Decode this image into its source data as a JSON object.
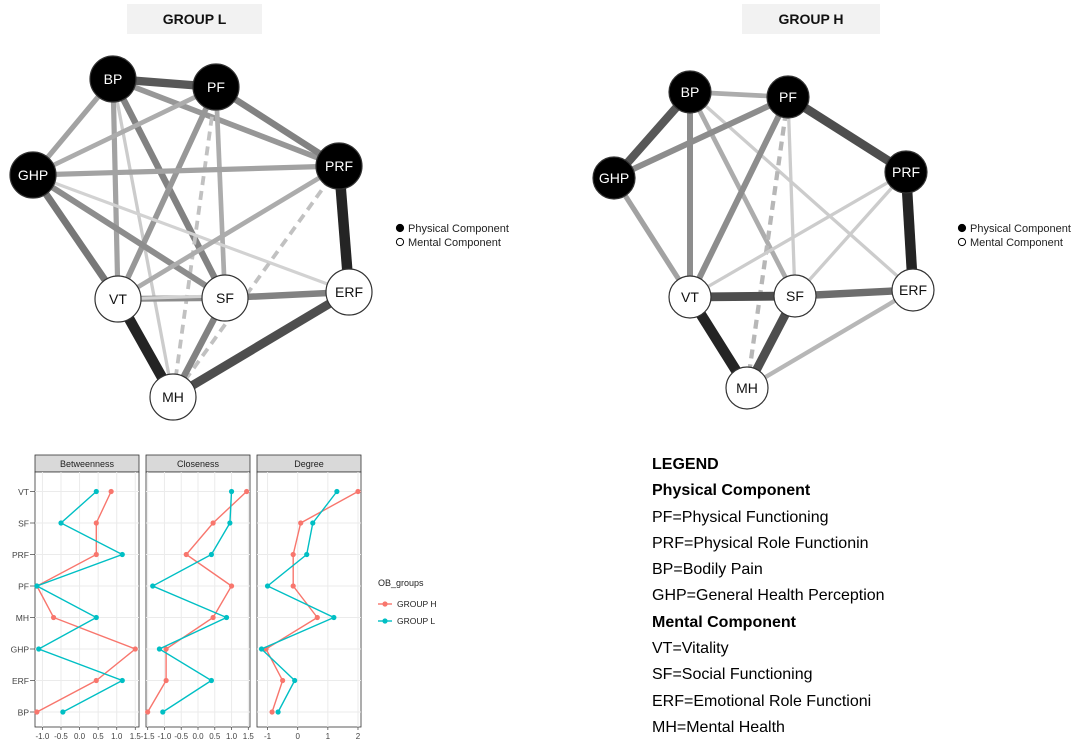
{
  "networks": [
    {
      "title": "GROUP L",
      "legend": [
        "Physical Component",
        "Mental Component"
      ],
      "nodes": [
        {
          "id": "BP",
          "label": "BP",
          "component": "physical"
        },
        {
          "id": "PF",
          "label": "PF",
          "component": "physical"
        },
        {
          "id": "GHP",
          "label": "GHP",
          "component": "physical"
        },
        {
          "id": "PRF",
          "label": "PRF",
          "component": "physical"
        },
        {
          "id": "VT",
          "label": "VT",
          "component": "mental"
        },
        {
          "id": "SF",
          "label": "SF",
          "component": "mental"
        },
        {
          "id": "ERF",
          "label": "ERF",
          "component": "mental"
        },
        {
          "id": "MH",
          "label": "MH",
          "component": "mental"
        }
      ],
      "edges": [
        {
          "a": "BP",
          "b": "PF",
          "strength": 0.7
        },
        {
          "a": "BP",
          "b": "GHP",
          "strength": 0.35
        },
        {
          "a": "BP",
          "b": "PRF",
          "strength": 0.4
        },
        {
          "a": "BP",
          "b": "VT",
          "strength": 0.35
        },
        {
          "a": "BP",
          "b": "SF",
          "strength": 0.5
        },
        {
          "a": "BP",
          "b": "MH",
          "strength": 0.15
        },
        {
          "a": "PF",
          "b": "GHP",
          "strength": 0.3
        },
        {
          "a": "PF",
          "b": "PRF",
          "strength": 0.5
        },
        {
          "a": "PF",
          "b": "VT",
          "strength": 0.4
        },
        {
          "a": "PF",
          "b": "SF",
          "strength": 0.3
        },
        {
          "a": "PF",
          "b": "MH",
          "strength": 0.2,
          "dashed": true
        },
        {
          "a": "GHP",
          "b": "PRF",
          "strength": 0.35
        },
        {
          "a": "GHP",
          "b": "VT",
          "strength": 0.55
        },
        {
          "a": "GHP",
          "b": "SF",
          "strength": 0.45
        },
        {
          "a": "GHP",
          "b": "ERF",
          "strength": 0.12
        },
        {
          "a": "PRF",
          "b": "ERF",
          "strength": 0.95
        },
        {
          "a": "PRF",
          "b": "VT",
          "strength": 0.3
        },
        {
          "a": "PRF",
          "b": "MH",
          "strength": 0.2,
          "dashed": true
        },
        {
          "a": "VT",
          "b": "SF",
          "strength": 0.45
        },
        {
          "a": "VT",
          "b": "MH",
          "strength": 0.95
        },
        {
          "a": "VT",
          "b": "ERF",
          "strength": 0.12
        },
        {
          "a": "SF",
          "b": "ERF",
          "strength": 0.5
        },
        {
          "a": "SF",
          "b": "MH",
          "strength": 0.5
        },
        {
          "a": "ERF",
          "b": "MH",
          "strength": 0.75
        }
      ]
    },
    {
      "title": "GROUP H",
      "legend": [
        "Physical Component",
        "Mental Component"
      ],
      "nodes": [
        {
          "id": "BP",
          "label": "BP",
          "component": "physical"
        },
        {
          "id": "PF",
          "label": "PF",
          "component": "physical"
        },
        {
          "id": "GHP",
          "label": "GHP",
          "component": "physical"
        },
        {
          "id": "PRF",
          "label": "PRF",
          "component": "physical"
        },
        {
          "id": "VT",
          "label": "VT",
          "component": "mental"
        },
        {
          "id": "SF",
          "label": "SF",
          "component": "mental"
        },
        {
          "id": "ERF",
          "label": "ERF",
          "component": "mental"
        },
        {
          "id": "MH",
          "label": "MH",
          "component": "mental"
        }
      ],
      "edges": [
        {
          "a": "BP",
          "b": "PF",
          "strength": 0.3
        },
        {
          "a": "BP",
          "b": "GHP",
          "strength": 0.7
        },
        {
          "a": "BP",
          "b": "VT",
          "strength": 0.45
        },
        {
          "a": "BP",
          "b": "SF",
          "strength": 0.3
        },
        {
          "a": "BP",
          "b": "ERF",
          "strength": 0.15
        },
        {
          "a": "PF",
          "b": "GHP",
          "strength": 0.45
        },
        {
          "a": "PF",
          "b": "PRF",
          "strength": 0.75
        },
        {
          "a": "PF",
          "b": "VT",
          "strength": 0.45
        },
        {
          "a": "PF",
          "b": "MH",
          "strength": 0.25,
          "dashed": true
        },
        {
          "a": "PF",
          "b": "SF",
          "strength": 0.15
        },
        {
          "a": "GHP",
          "b": "VT",
          "strength": 0.35
        },
        {
          "a": "PRF",
          "b": "ERF",
          "strength": 0.95
        },
        {
          "a": "PRF",
          "b": "VT",
          "strength": 0.15
        },
        {
          "a": "PRF",
          "b": "SF",
          "strength": 0.15
        },
        {
          "a": "VT",
          "b": "SF",
          "strength": 0.75
        },
        {
          "a": "VT",
          "b": "MH",
          "strength": 0.95
        },
        {
          "a": "SF",
          "b": "ERF",
          "strength": 0.6
        },
        {
          "a": "SF",
          "b": "MH",
          "strength": 0.75
        },
        {
          "a": "ERF",
          "b": "MH",
          "strength": 0.25
        }
      ]
    }
  ],
  "centrality": {
    "panels": [
      {
        "title": "Betweenness",
        "xlim": [
          -1.2,
          1.6
        ],
        "ticks": [
          "-1.0",
          "-0.5",
          "0.0",
          "0.5",
          "1.0",
          "1.5"
        ],
        "tick_values": [
          -1.0,
          -0.5,
          0.0,
          0.5,
          1.0,
          1.5
        ],
        "group_h": [
          -1.15,
          0.45,
          1.5,
          -0.7,
          -1.15,
          0.45,
          0.45,
          0.85
        ],
        "group_l": [
          -0.45,
          1.15,
          -1.1,
          0.45,
          -1.15,
          1.15,
          -0.5,
          0.45
        ]
      },
      {
        "title": "Closeness",
        "xlim": [
          -1.55,
          1.55
        ],
        "ticks": [
          "-1.5",
          "-1.0",
          "-0.5",
          "0.0",
          "0.5",
          "1.0",
          "1.5"
        ],
        "tick_values": [
          -1.5,
          -1.0,
          -0.5,
          0.0,
          0.5,
          1.0,
          1.5
        ],
        "group_h": [
          -1.5,
          -0.95,
          -0.95,
          0.45,
          1.0,
          -0.35,
          0.45,
          1.45
        ],
        "group_l": [
          -1.05,
          0.4,
          -1.15,
          0.85,
          -1.35,
          0.4,
          0.95,
          1.0
        ]
      },
      {
        "title": "Degree",
        "xlim": [
          -1.35,
          2.1
        ],
        "ticks": [
          "-1",
          "0",
          "1",
          "2"
        ],
        "tick_values": [
          -1,
          0,
          1,
          2
        ],
        "group_h": [
          -0.85,
          -0.5,
          -1.05,
          0.65,
          -0.15,
          -0.15,
          0.1,
          2.0
        ],
        "group_l": [
          -0.65,
          -0.1,
          -1.2,
          1.2,
          -1.0,
          0.3,
          0.5,
          1.3
        ]
      }
    ],
    "y_labels": [
      "BP",
      "ERF",
      "GHP",
      "MH",
      "PF",
      "PRF",
      "SF",
      "VT"
    ],
    "legend_title": "OB_groups",
    "series": [
      {
        "key": "group_h",
        "name": "GROUP H",
        "color": "#F8766D"
      },
      {
        "key": "group_l",
        "name": "GROUP L",
        "color": "#00BFC4"
      }
    ]
  },
  "legend": {
    "lines": [
      {
        "text": "LEGEND",
        "bold": true
      },
      {
        "text": "Physical Component",
        "bold": true
      },
      {
        "text": "PF=Physical Functioning",
        "bold": false
      },
      {
        "text": "PRF=Physical Role Functionin",
        "bold": false
      },
      {
        "text": "BP=Bodily Pain",
        "bold": false
      },
      {
        "text": "GHP=General Health Perception",
        "bold": false
      },
      {
        "text": "Mental Component",
        "bold": true
      },
      {
        "text": "VT=Vitality",
        "bold": false
      },
      {
        "text": "SF=Social Functioning",
        "bold": false
      },
      {
        "text": "ERF=Emotional Role Functioni",
        "bold": false
      },
      {
        "text": "MH=Mental Health",
        "bold": false
      }
    ]
  }
}
